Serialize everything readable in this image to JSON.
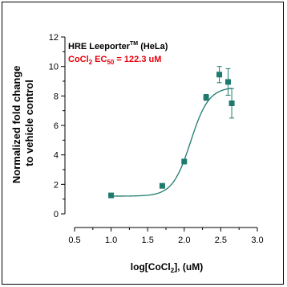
{
  "chart_data": {
    "type": "scatter",
    "xlabel_parts": [
      "log[CoCl",
      "2",
      "], (uM)"
    ],
    "ylabel_lines": [
      "Normalized fold change",
      "to vehicle control"
    ],
    "xlim": [
      0.5,
      3.0
    ],
    "ylim": [
      0,
      12
    ],
    "xticks": [
      "0.5",
      "1.0",
      "1.5",
      "2.0",
      "2.5",
      "3.0"
    ],
    "yticks": [
      "0",
      "2",
      "4",
      "6",
      "8",
      "10",
      "12"
    ],
    "annotation": {
      "line1_parts": [
        "HRE Leeporter",
        "TM",
        " (HeLa)"
      ],
      "line2_parts": [
        "CoCl",
        "2",
        " EC",
        "50",
        " = 122.3 uM"
      ]
    },
    "series": [
      {
        "points": [
          {
            "x": 1.0,
            "y": 1.25,
            "err": 0.1
          },
          {
            "x": 1.7,
            "y": 1.9,
            "err": 0.15
          },
          {
            "x": 2.0,
            "y": 3.55,
            "err": 0.15
          },
          {
            "x": 2.3,
            "y": 7.9,
            "err": 0.2
          },
          {
            "x": 2.48,
            "y": 9.45,
            "err": 0.55
          },
          {
            "x": 2.6,
            "y": 8.95,
            "err": 0.9
          },
          {
            "x": 2.65,
            "y": 7.5,
            "err": 1.0
          }
        ]
      }
    ],
    "fit": {
      "x_start": 1.0,
      "x_end": 2.65,
      "bottom": 1.2,
      "top": 8.6,
      "log_ec50": 2.0875,
      "hill": 3.5
    },
    "colors": {
      "marker": "#1f7a6e",
      "fit": "#1f7a6e",
      "annotation_red": "#e8000b",
      "axis": "#000000"
    }
  }
}
